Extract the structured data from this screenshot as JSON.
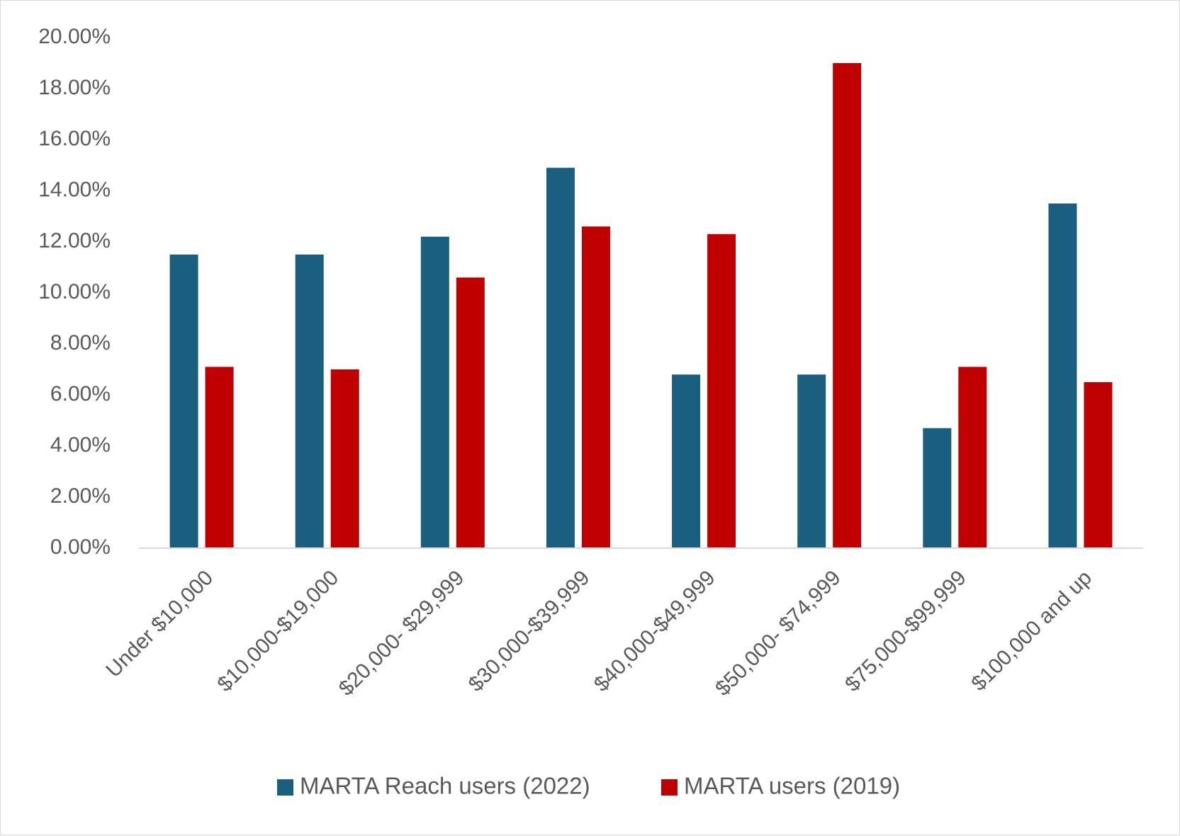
{
  "chart_data": {
    "type": "bar",
    "title": "",
    "xlabel": "",
    "ylabel": "",
    "categories": [
      "Under $10,000",
      "$10,000-$19,000",
      "$20,000- $29,999",
      "$30,000-$39,999",
      "$40,000-$49,999",
      "$50,000- $74,999",
      "$75,000-$99,999",
      "$100,000 and up"
    ],
    "series": [
      {
        "name": "MARTA Reach users (2022)",
        "color": "#1a5e80",
        "values": [
          11.5,
          11.5,
          12.2,
          14.9,
          6.8,
          6.8,
          4.7,
          13.5
        ]
      },
      {
        "name": "MARTA users (2019)",
        "color": "#c00000",
        "values": [
          7.1,
          7.0,
          10.6,
          12.6,
          12.3,
          19.0,
          7.1,
          6.5
        ]
      }
    ],
    "ylim": [
      0,
      20
    ],
    "yticks": [
      0,
      2,
      4,
      6,
      8,
      10,
      12,
      14,
      16,
      18,
      20
    ],
    "ytick_labels": [
      "0.00%",
      "2.00%",
      "4.00%",
      "6.00%",
      "8.00%",
      "10.00%",
      "12.00%",
      "14.00%",
      "16.00%",
      "18.00%",
      "20.00%"
    ],
    "grid": false,
    "legend_position": "bottom"
  }
}
